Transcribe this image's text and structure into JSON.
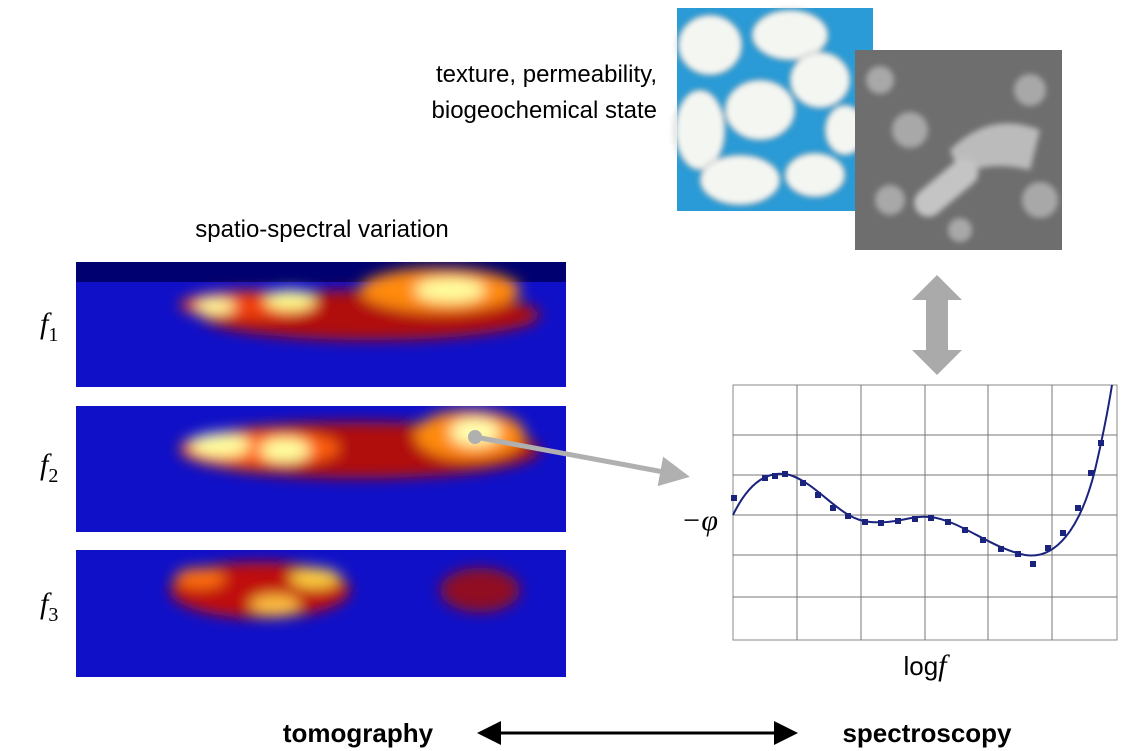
{
  "labels": {
    "texture": [
      "texture, permeability,",
      "biogeochemical state"
    ],
    "variation": "spatio-spectral variation",
    "frequencies": [
      {
        "symbol": "f",
        "subscript": "1"
      },
      {
        "symbol": "f",
        "subscript": "2"
      },
      {
        "symbol": "f",
        "subscript": "3"
      }
    ]
  },
  "plot": {
    "y_label": "−φ",
    "x_label": {
      "prefix": "log",
      "symbol": "f"
    }
  },
  "footer": {
    "left": "tomography",
    "right": "spectroscopy"
  }
}
